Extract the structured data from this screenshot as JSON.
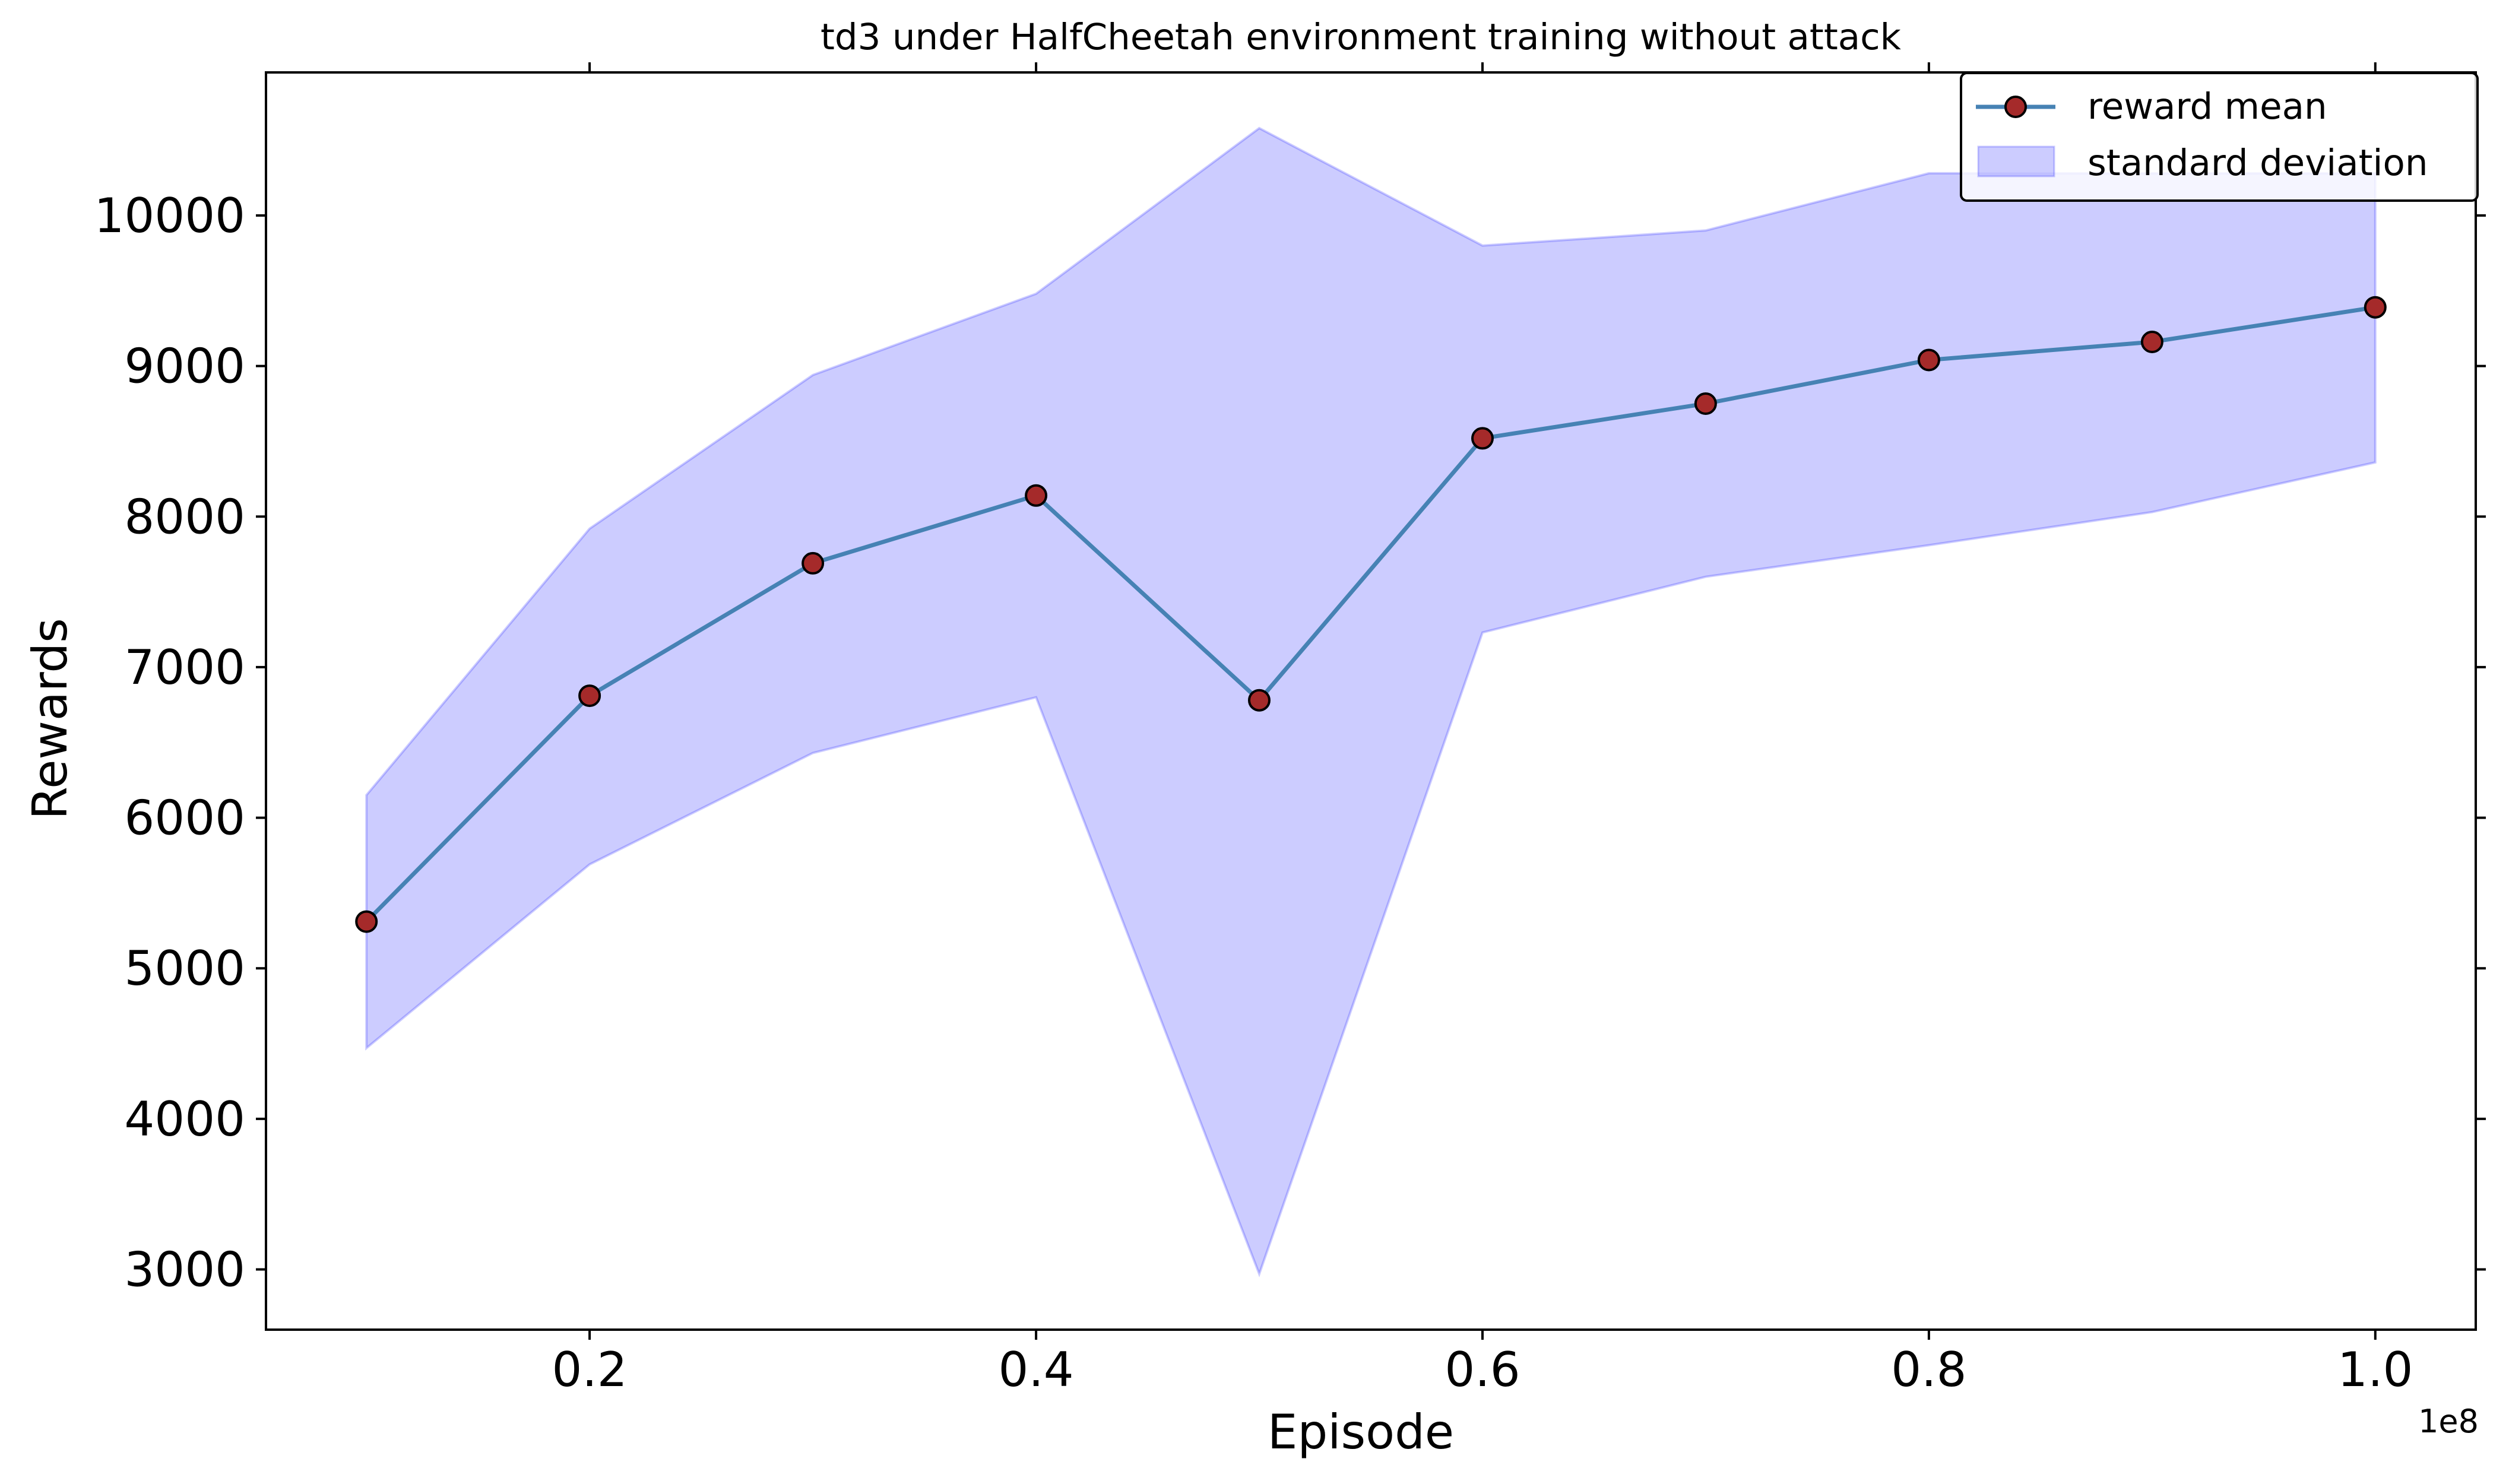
{
  "chart_data": {
    "type": "line",
    "title": "td3 under HalfCheetah environment training without attack",
    "xlabel": "Episode",
    "ylabel": "Rewards",
    "x_offset_label": "1e8",
    "x": [
      0.1,
      0.2,
      0.3,
      0.4,
      0.5,
      0.6,
      0.7,
      0.8,
      0.9,
      1.0
    ],
    "x_ticks": [
      0.2,
      0.4,
      0.6,
      0.8,
      1.0
    ],
    "x_tick_labels": [
      "0.2",
      "0.4",
      "0.6",
      "0.8",
      "1.0"
    ],
    "y_ticks": [
      3000,
      4000,
      5000,
      6000,
      7000,
      8000,
      9000,
      10000
    ],
    "y_tick_labels": [
      "3000",
      "4000",
      "5000",
      "6000",
      "7000",
      "8000",
      "9000",
      "10000"
    ],
    "xlim": [
      0.055,
      1.045
    ],
    "ylim": [
      2600,
      10950
    ],
    "grid": false,
    "legend_position": "top-right",
    "series": [
      {
        "name": "reward mean",
        "kind": "line",
        "values": [
          5310,
          6810,
          7690,
          8140,
          6780,
          8520,
          8750,
          9040,
          9160,
          9390
        ],
        "color": "#4682b4",
        "marker_face": "#a52a2a",
        "marker_edge": "#000000"
      },
      {
        "name": "standard deviation",
        "kind": "band",
        "upper": [
          6150,
          7920,
          8940,
          9480,
          10580,
          9800,
          9900,
          10280,
          10280,
          10280
        ],
        "lower": [
          4470,
          5690,
          6430,
          6800,
          2970,
          7230,
          7600,
          7810,
          8030,
          8360
        ],
        "color": "#0000ff",
        "fill_opacity": 0.2
      }
    ]
  }
}
